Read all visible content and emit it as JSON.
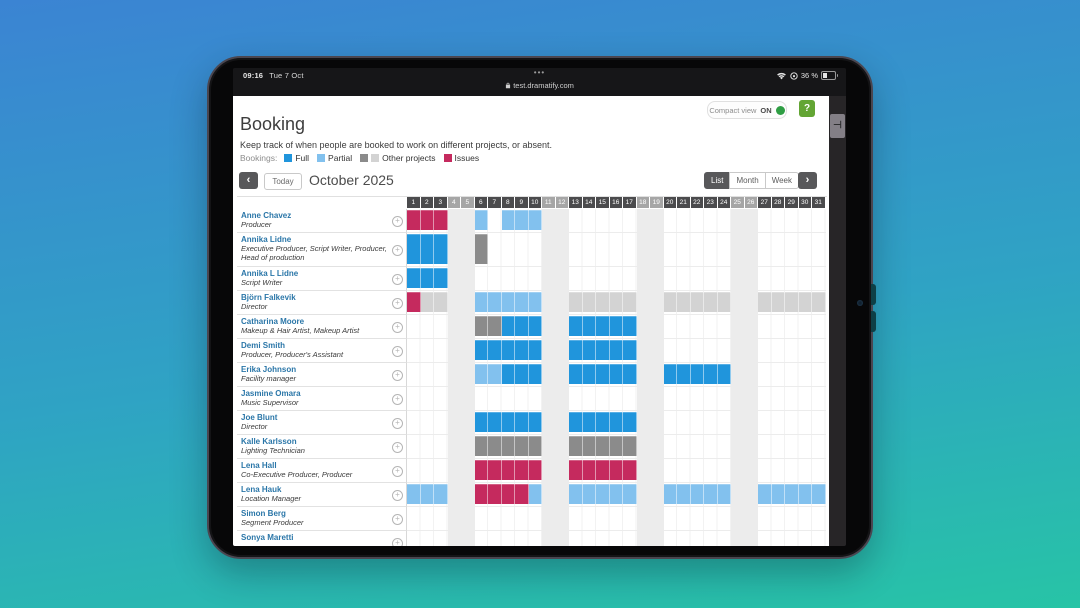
{
  "status_bar": {
    "time": "09:16",
    "date": "Tue 7 Oct",
    "menu_dots": "•••",
    "url": "test.dramatify.com",
    "battery_percent": "36 %"
  },
  "side_panel_handle": "⊣",
  "page": {
    "compact_view": {
      "label": "Compact view",
      "state": "ON"
    },
    "help_label": "?",
    "title": "Booking",
    "subtitle": "Keep track of when people are booked to work on different projects, or absent.",
    "legend": {
      "label": "Bookings:",
      "items": [
        {
          "label": "Full",
          "swatches": [
            "full"
          ]
        },
        {
          "label": "Partial",
          "swatches": [
            "partial"
          ]
        },
        {
          "label": "Other projects",
          "swatches": [
            "other_dark",
            "other_light"
          ]
        },
        {
          "label": "Issues",
          "swatches": [
            "issues"
          ]
        }
      ]
    },
    "toolbar": {
      "prev_label": "‹",
      "today_label": "Today",
      "period": "October 2025",
      "views": [
        "List",
        "Month",
        "Week"
      ],
      "active_view": "List",
      "next_label": "›"
    },
    "calendar": {
      "days_in_month": 31,
      "weekend_days": [
        4,
        5,
        11,
        12,
        18,
        19,
        25,
        26
      ],
      "rows": [
        {
          "name": "Anne Chavez",
          "role": "Producer",
          "bookings": [
            {
              "from": 1,
              "to": 3,
              "type": "issues"
            },
            {
              "from": 6,
              "to": 6,
              "type": "partial"
            },
            {
              "from": 8,
              "to": 10,
              "type": "partial"
            }
          ]
        },
        {
          "name": "Annika Lidne",
          "role": "Executive Producer, Script Writer, Producer, Head of production",
          "tall": true,
          "bookings": [
            {
              "from": 1,
              "to": 3,
              "type": "full"
            },
            {
              "from": 6,
              "to": 6,
              "type": "other_dark"
            }
          ]
        },
        {
          "name": "Annika L Lidne",
          "role": "Script Writer",
          "bookings": [
            {
              "from": 1,
              "to": 3,
              "type": "full"
            }
          ]
        },
        {
          "name": "Björn Falkevik",
          "role": "Director",
          "bookings": [
            {
              "from": 1,
              "to": 1,
              "type": "issues"
            },
            {
              "from": 2,
              "to": 3,
              "type": "other_light"
            },
            {
              "from": 6,
              "to": 10,
              "type": "partial"
            },
            {
              "from": 13,
              "to": 17,
              "type": "other_light"
            },
            {
              "from": 20,
              "to": 24,
              "type": "other_light"
            },
            {
              "from": 27,
              "to": 31,
              "type": "other_light"
            }
          ]
        },
        {
          "name": "Catharina Moore",
          "role": "Makeup & Hair Artist, Makeup Artist",
          "bookings": [
            {
              "from": 6,
              "to": 7,
              "type": "other_dark"
            },
            {
              "from": 8,
              "to": 10,
              "type": "full"
            },
            {
              "from": 13,
              "to": 17,
              "type": "full"
            }
          ]
        },
        {
          "name": "Demi Smith",
          "role": "Producer, Producer's Assistant",
          "bookings": [
            {
              "from": 6,
              "to": 10,
              "type": "full"
            },
            {
              "from": 13,
              "to": 17,
              "type": "full"
            }
          ]
        },
        {
          "name": "Erika Johnson",
          "role": "Facility manager",
          "bookings": [
            {
              "from": 6,
              "to": 7,
              "type": "partial"
            },
            {
              "from": 8,
              "to": 10,
              "type": "full"
            },
            {
              "from": 13,
              "to": 17,
              "type": "full"
            },
            {
              "from": 20,
              "to": 24,
              "type": "full"
            }
          ]
        },
        {
          "name": "Jasmine Omara",
          "role": "Music Supervisor",
          "bookings": []
        },
        {
          "name": "Joe Blunt",
          "role": "Director",
          "bookings": [
            {
              "from": 6,
              "to": 10,
              "type": "full"
            },
            {
              "from": 13,
              "to": 17,
              "type": "full"
            }
          ]
        },
        {
          "name": "Kalle Karlsson",
          "role": "Lighting Technician",
          "bookings": [
            {
              "from": 6,
              "to": 10,
              "type": "other_dark"
            },
            {
              "from": 13,
              "to": 17,
              "type": "other_dark"
            }
          ]
        },
        {
          "name": "Lena Hall",
          "role": "Co-Executive Producer, Producer",
          "bookings": [
            {
              "from": 6,
              "to": 10,
              "type": "issues"
            },
            {
              "from": 13,
              "to": 17,
              "type": "issues"
            }
          ]
        },
        {
          "name": "Lena Hauk",
          "role": "Location Manager",
          "bookings": [
            {
              "from": 1,
              "to": 3,
              "type": "partial"
            },
            {
              "from": 6,
              "to": 9,
              "type": "issues"
            },
            {
              "from": 10,
              "to": 10,
              "type": "partial"
            },
            {
              "from": 13,
              "to": 17,
              "type": "partial"
            },
            {
              "from": 20,
              "to": 24,
              "type": "partial"
            },
            {
              "from": 27,
              "to": 31,
              "type": "partial"
            }
          ]
        },
        {
          "name": "Simon Berg",
          "role": "Segment Producer",
          "bookings": []
        },
        {
          "name": "Sonya Maretti",
          "role": "",
          "bookings": []
        }
      ]
    }
  },
  "booking_colors": {
    "full": "#2095dc",
    "partial": "#82c1ee",
    "other_dark": "#8b8b8b",
    "other_light": "#d3d3d3",
    "issues": "#c52a5e"
  },
  "accent_colors": {
    "toggle_green": "#2f9e44",
    "help_green": "#63a534",
    "button_dark": "#58585a"
  }
}
